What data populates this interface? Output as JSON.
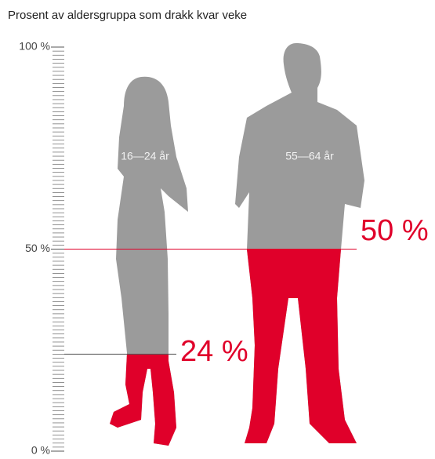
{
  "chart_data": {
    "type": "pictogram",
    "title": "Prosent av aldersgruppa som drakk kvar veke",
    "categories": [
      "16—24 år",
      "55—64 år"
    ],
    "values": [
      24,
      50
    ],
    "value_labels": [
      "24 %",
      "50 %"
    ],
    "color": "#e0002a",
    "base_color": "#9b9b9b",
    "ylim": [
      0,
      100
    ],
    "yticks": [
      {
        "value": 0,
        "label": "0 %"
      },
      {
        "value": 50,
        "label": "50 %"
      },
      {
        "value": 100,
        "label": "100 %"
      }
    ]
  }
}
